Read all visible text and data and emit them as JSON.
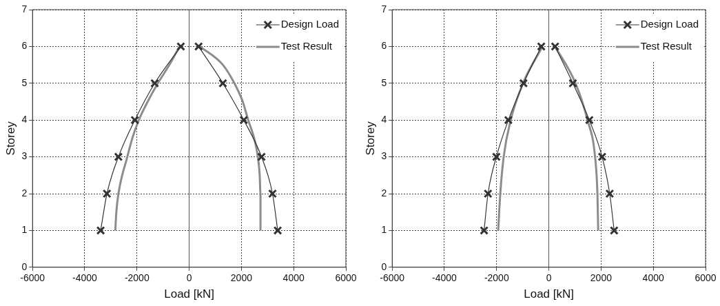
{
  "chart_data": [
    {
      "type": "line",
      "xlabel": "Load [kN]",
      "ylabel": "Storey",
      "xlim": [
        -6000,
        6000
      ],
      "xticks": [
        -6000,
        -4000,
        -2000,
        0,
        2000,
        4000,
        6000
      ],
      "ylim": [
        0,
        7
      ],
      "yticks": [
        0,
        1,
        2,
        3,
        4,
        5,
        6,
        7
      ],
      "grid": true,
      "legend": "top right",
      "series": [
        {
          "name": "Design Load",
          "color": "#333333",
          "marker": "cross",
          "x": [
            -3390,
            -3150,
            -2710,
            -2080,
            -1320,
            -320
          ],
          "values": [
            1,
            2,
            3,
            4,
            5,
            6
          ]
        },
        {
          "color": "#333333",
          "marker": "cross",
          "x": [
            360,
            1290,
            2090,
            2770,
            3190,
            3390
          ],
          "values": [
            6,
            5,
            4,
            3,
            2,
            1
          ]
        },
        {
          "name": "Test Result",
          "color": "#8c8c8c",
          "marker": "none",
          "x": [
            -2830,
            -2790,
            -2710,
            -2370,
            -2180,
            -1930,
            -1590,
            -1200,
            -760,
            -370
          ],
          "values": [
            1,
            1.5,
            2,
            3,
            3.5,
            4,
            4.5,
            5,
            5.5,
            6
          ]
        },
        {
          "color": "#8c8c8c",
          "marker": "none",
          "x": [
            410,
            1290,
            1730,
            2050,
            2260,
            2490,
            2630,
            2700,
            2730,
            2730
          ],
          "values": [
            6,
            5.5,
            5,
            4.5,
            4,
            3.5,
            3,
            2.5,
            2,
            1
          ]
        }
      ]
    },
    {
      "type": "line",
      "xlabel": "Load [kN]",
      "ylabel": "Storey",
      "xlim": [
        -6000,
        6000
      ],
      "xticks": [
        -6000,
        -4000,
        -2000,
        0,
        2000,
        4000,
        6000
      ],
      "ylim": [
        0,
        7
      ],
      "yticks": [
        0,
        1,
        2,
        3,
        4,
        5,
        6,
        7
      ],
      "grid": true,
      "legend": "top right",
      "series": [
        {
          "name": "Design Load",
          "color": "#333333",
          "marker": "cross",
          "x": [
            -2480,
            -2330,
            -2010,
            -1550,
            -970,
            -290
          ],
          "values": [
            1,
            2,
            3,
            4,
            5,
            6
          ]
        },
        {
          "color": "#333333",
          "marker": "cross",
          "x": [
            240,
            920,
            1550,
            2040,
            2330,
            2500
          ],
          "values": [
            6,
            5,
            4,
            3,
            2,
            1
          ]
        },
        {
          "name": "Test Result",
          "color": "#8c8c8c",
          "marker": "none",
          "x": [
            -1940,
            -1860,
            -1730,
            -1460,
            -990,
            -240
          ],
          "values": [
            1,
            2,
            3,
            4,
            5,
            6
          ]
        },
        {
          "color": "#8c8c8c",
          "marker": "none",
          "x": [
            240,
            1020,
            1480,
            1770,
            1860,
            1890
          ],
          "values": [
            6,
            5,
            4,
            3,
            2,
            1
          ]
        }
      ]
    }
  ]
}
